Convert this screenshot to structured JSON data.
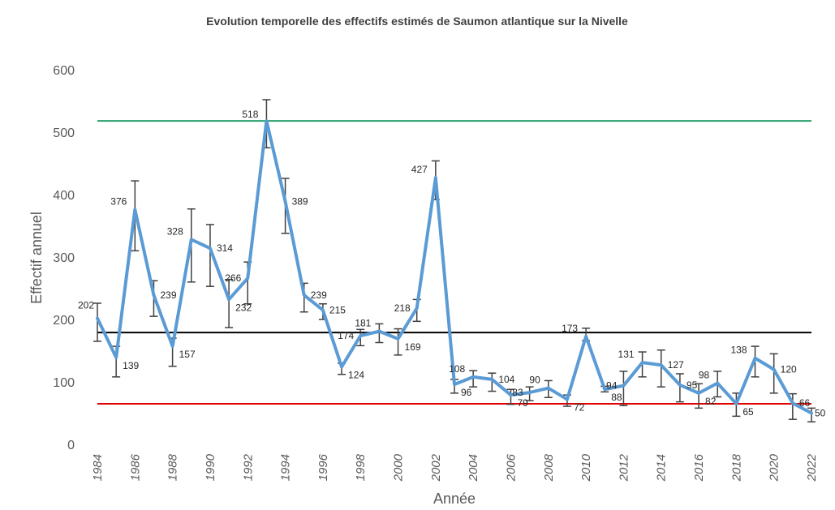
{
  "chart_data": {
    "type": "line",
    "title": "Evolution temporelle des effectifs estimés de Saumon atlantique sur la Nivelle",
    "xlabel": "Année",
    "ylabel": "Effectif annuel",
    "ylim": [
      0,
      600
    ],
    "yticks": [
      "0",
      "100",
      "200",
      "300",
      "400",
      "500",
      "600"
    ],
    "xticks": [
      "1984",
      "1986",
      "1988",
      "1990",
      "1992",
      "1994",
      "1996",
      "1998",
      "2000",
      "2002",
      "2004",
      "2006",
      "2008",
      "2010",
      "2012",
      "2014",
      "2016",
      "2018",
      "2020",
      "2022"
    ],
    "x": [
      1984,
      1985,
      1986,
      1987,
      1988,
      1989,
      1990,
      1991,
      1992,
      1993,
      1994,
      1995,
      1996,
      1997,
      1998,
      1999,
      2000,
      2001,
      2002,
      2003,
      2004,
      2005,
      2006,
      2007,
      2008,
      2009,
      2010,
      2011,
      2012,
      2013,
      2014,
      2015,
      2016,
      2017,
      2018,
      2019,
      2020,
      2021,
      2022
    ],
    "series": [
      {
        "color": "#5B9BD5",
        "values": [
          202,
          139,
          376,
          239,
          157,
          328,
          314,
          232,
          266,
          518,
          389,
          239,
          215,
          124,
          174,
          181,
          169,
          218,
          427,
          96,
          108,
          104,
          79,
          83,
          90,
          72,
          173,
          88,
          94,
          131,
          127,
          95,
          82,
          98,
          65,
          138,
          120,
          66,
          50
        ],
        "labels": [
          "202",
          "139",
          "376",
          "239",
          "157",
          "328",
          "314",
          "232",
          "266",
          "518",
          "389",
          "239",
          "215",
          "124",
          "174",
          "181",
          "169",
          "218",
          "427",
          "96",
          "108",
          "104",
          "79",
          "83",
          "90",
          "72",
          "173",
          "88",
          "94",
          "131",
          "127",
          "95",
          "82",
          "98",
          "65",
          "138",
          "120",
          "66",
          "50"
        ],
        "err_low": [
          165,
          108,
          310,
          205,
          125,
          260,
          253,
          187,
          225,
          475,
          338,
          212,
          200,
          112,
          158,
          163,
          143,
          197,
          392,
          82,
          92,
          85,
          64,
          70,
          75,
          61,
          166,
          84,
          62,
          108,
          92,
          68,
          58,
          76,
          45,
          108,
          82,
          40,
          36
        ],
        "err_high": [
          226,
          157,
          422,
          262,
          170,
          377,
          352,
          264,
          292,
          552,
          426,
          258,
          225,
          130,
          184,
          193,
          185,
          232,
          454,
          104,
          118,
          114,
          88,
          92,
          102,
          79,
          186,
          93,
          117,
          148,
          151,
          113,
          97,
          117,
          82,
          157,
          145,
          81,
          58
        ]
      }
    ],
    "reference_lines": [
      {
        "value": 518,
        "color": "#27A06A"
      },
      {
        "value": 179,
        "color": "#000000"
      },
      {
        "value": 65,
        "color": "#E00000"
      }
    ],
    "grid": false,
    "legend": "none"
  }
}
